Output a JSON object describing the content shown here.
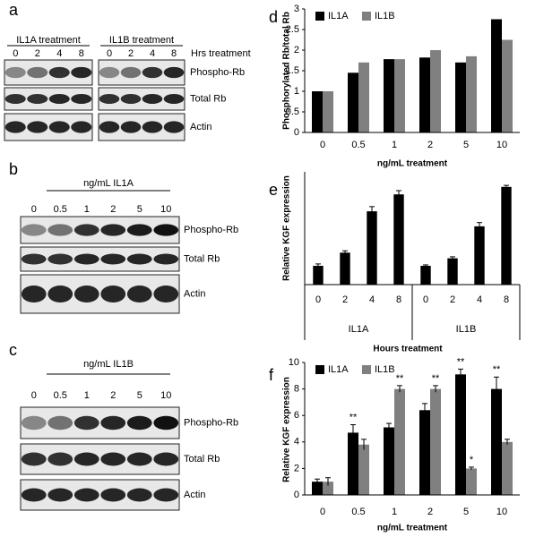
{
  "blots": [
    {
      "letter": "a",
      "groups": [
        {
          "title": "IL1A treatment",
          "lanes": [
            "0",
            "2",
            "4",
            "8"
          ]
        },
        {
          "title": "IL1B treatment",
          "lanes": [
            "0",
            "2",
            "4",
            "8"
          ]
        }
      ],
      "lane_axis": "Hrs treatment",
      "rows": [
        "Phospho-Rb",
        "Total Rb",
        "Actin"
      ]
    },
    {
      "letter": "b",
      "groups": [
        {
          "title": "ng/mL IL1A",
          "lanes": [
            "0",
            "0.5",
            "1",
            "2",
            "5",
            "10"
          ]
        }
      ],
      "rows": [
        "Phospho-Rb",
        "Total Rb",
        "Actin"
      ]
    },
    {
      "letter": "c",
      "groups": [
        {
          "title": "ng/mL IL1B",
          "lanes": [
            "0",
            "0.5",
            "1",
            "2",
            "5",
            "10"
          ]
        }
      ],
      "rows": [
        "Phospho-Rb",
        "Total Rb",
        "Actin"
      ]
    }
  ],
  "chart_data": [
    {
      "label": "d",
      "type": "bar",
      "ylabel": "Phosphorylated Rb/total Rb",
      "xlabel": "ng/mL treatment",
      "categories": [
        "0",
        "0.5",
        "1",
        "2",
        "5",
        "10"
      ],
      "series": [
        {
          "name": "IL1A",
          "color": "#000000",
          "values": [
            1,
            1.45,
            1.78,
            1.82,
            1.7,
            2.75
          ]
        },
        {
          "name": "IL1B",
          "color": "#808080",
          "values": [
            1,
            1.7,
            1.78,
            2.0,
            1.85,
            2.25
          ]
        }
      ],
      "ylim": [
        0,
        3
      ],
      "yticks": [
        0,
        0.5,
        1,
        1.5,
        2,
        2.5,
        3
      ],
      "legend": "top-left",
      "grid": false
    },
    {
      "label": "e",
      "type": "bar",
      "ylabel": "Relative KGF expression",
      "xlabel": "Hours treatment",
      "categories": [
        "0",
        "2",
        "4",
        "8",
        "0",
        "2",
        "4",
        "8"
      ],
      "groups": [
        "IL1A",
        "IL1B"
      ],
      "values": [
        1.0,
        1.7,
        3.9,
        4.8,
        1.0,
        1.4,
        3.1,
        5.2
      ],
      "errors": [
        0.1,
        0.1,
        0.25,
        0.2,
        0.05,
        0.08,
        0.2,
        0.08
      ],
      "color": "#000000",
      "ylim": [
        0,
        6
      ],
      "grid": false
    },
    {
      "label": "f",
      "type": "bar",
      "ylabel": "Relative KGF expression",
      "xlabel": "ng/mL treatment",
      "categories": [
        "0",
        "0.5",
        "1",
        "2",
        "5",
        "10"
      ],
      "series": [
        {
          "name": "IL1A",
          "color": "#000000",
          "values": [
            1.0,
            4.7,
            5.1,
            6.4,
            9.1,
            8.0
          ],
          "errors": [
            0.2,
            0.6,
            0.3,
            0.5,
            0.4,
            0.9
          ],
          "significance": [
            null,
            "**",
            null,
            null,
            "**",
            "**"
          ]
        },
        {
          "name": "IL1B",
          "color": "#808080",
          "values": [
            1.0,
            3.8,
            8.0,
            8.0,
            2.0,
            4.0
          ],
          "errors": [
            0.3,
            0.4,
            0.25,
            0.25,
            0.1,
            0.2
          ],
          "significance": [
            null,
            null,
            "**",
            "**",
            "*",
            null
          ]
        }
      ],
      "ylim": [
        0,
        10
      ],
      "yticks": [
        0,
        2,
        4,
        6,
        8,
        10
      ],
      "legend": "top-left",
      "grid": false
    }
  ]
}
